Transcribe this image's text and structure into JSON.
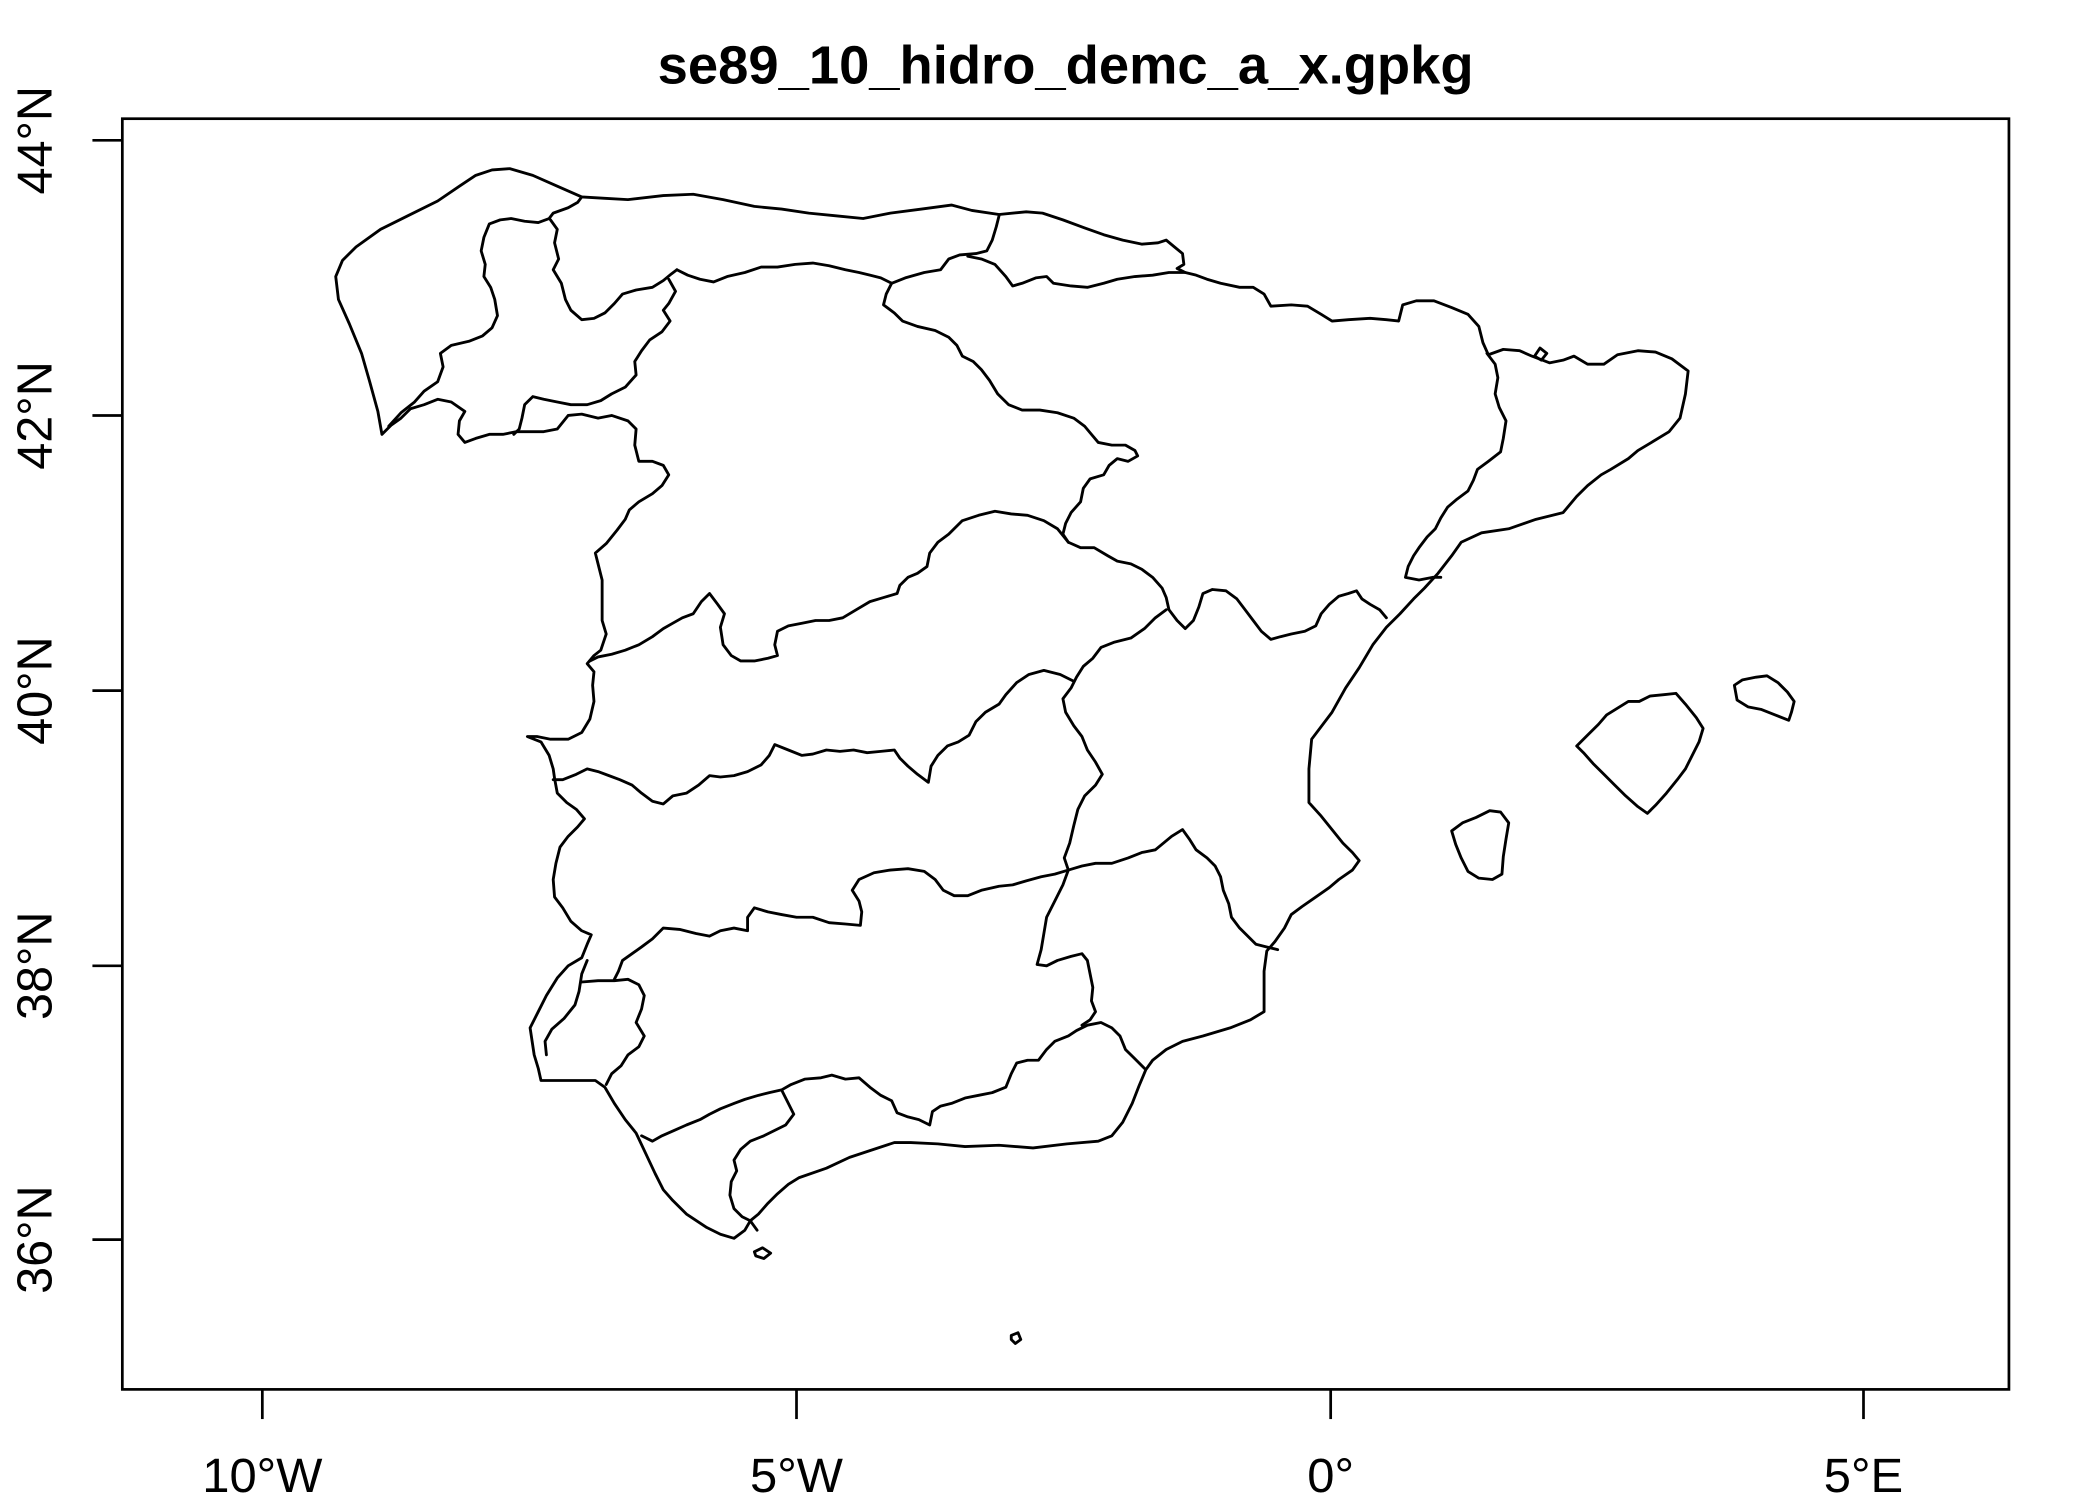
{
  "plot": {
    "title": "se89_10_hidro_demc_a_x.gpkg",
    "x_axis": {
      "tick_labels": [
        "10°W",
        "5°W",
        "0°",
        "5°E"
      ]
    },
    "y_axis": {
      "tick_labels": [
        "36°N",
        "38°N",
        "40°N",
        "42°N",
        "44°N"
      ]
    }
  },
  "style": {
    "line_color": "#000000",
    "background": "#ffffff"
  }
}
